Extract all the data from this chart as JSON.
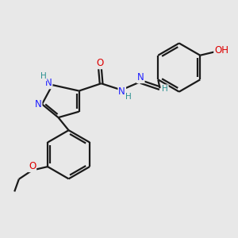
{
  "bg_color": "#e8e8e8",
  "bond_color": "#1a1a1a",
  "bond_width": 1.6,
  "atom_colors": {
    "N": "#2020ff",
    "O": "#dd0000",
    "C": "#1a1a1a",
    "H": "#2a9090"
  },
  "font_size": 8.5,
  "font_size_h": 7.5,
  "font_size_oh": 8.5
}
